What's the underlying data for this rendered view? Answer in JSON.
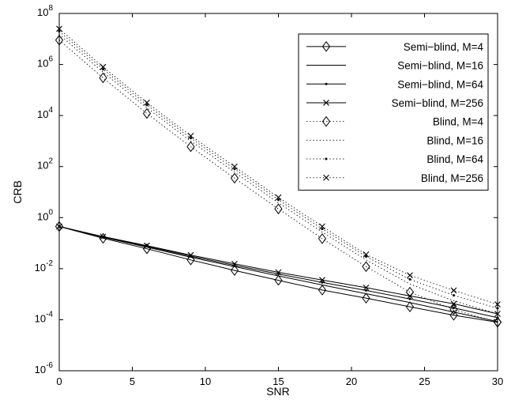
{
  "chart_data": {
    "type": "line",
    "title": "",
    "xlabel": "SNR",
    "ylabel": "CRB",
    "xlim": [
      0,
      30
    ],
    "ylim_log10": [
      -6,
      8
    ],
    "y_scale": "log",
    "x_ticks": [
      0,
      5,
      10,
      15,
      20,
      25,
      30
    ],
    "y_tick_exponents": [
      -6,
      -4,
      -2,
      0,
      2,
      4,
      6,
      8
    ],
    "x": [
      0,
      3,
      6,
      9,
      12,
      15,
      18,
      21,
      24,
      27,
      30
    ],
    "grid": false,
    "legend_position": "top-right",
    "series": [
      {
        "name": "Semi−blind, M=4",
        "line": "solid",
        "marker": "diamond",
        "values": [
          0.45,
          0.155,
          0.06,
          0.022,
          0.0085,
          0.0035,
          0.00145,
          0.0007,
          0.00032,
          0.00015,
          8e-05
        ]
      },
      {
        "name": "Semi−blind, M=16",
        "line": "solid",
        "marker": "none",
        "values": [
          0.45,
          0.17,
          0.07,
          0.028,
          0.012,
          0.0052,
          0.0023,
          0.00105,
          0.00047,
          0.0002,
          8.5e-05
        ]
      },
      {
        "name": "Semi−blind, M=64",
        "line": "solid",
        "marker": "dot",
        "values": [
          0.45,
          0.175,
          0.075,
          0.031,
          0.0135,
          0.0062,
          0.0029,
          0.0014,
          0.00065,
          0.00029,
          0.00012
        ]
      },
      {
        "name": "Semi−blind, M=256",
        "line": "solid",
        "marker": "x",
        "values": [
          0.45,
          0.18,
          0.08,
          0.034,
          0.0155,
          0.0072,
          0.0036,
          0.0018,
          0.00085,
          0.00042,
          0.00017
        ]
      },
      {
        "name": "Blind, M=4",
        "line": "dotted",
        "marker": "diamond",
        "values": [
          9000000,
          300000,
          12000,
          600,
          35,
          2.2,
          0.15,
          0.012,
          0.0012,
          0.00025,
          8e-05
        ]
      },
      {
        "name": "Blind, M=16",
        "line": "dotted",
        "marker": "none",
        "values": [
          15000000,
          500000,
          20000,
          1000,
          60,
          3.8,
          0.27,
          0.022,
          0.0025,
          0.00055,
          0.00017
        ]
      },
      {
        "name": "Blind, M=64",
        "line": "dotted",
        "marker": "dot",
        "values": [
          20000000,
          650000,
          26000,
          1300,
          80,
          5,
          0.36,
          0.03,
          0.0038,
          0.0009,
          0.00028
        ]
      },
      {
        "name": "Blind, M=256",
        "line": "dotted",
        "marker": "x",
        "values": [
          25000000,
          800000,
          32000,
          1600,
          100,
          6.2,
          0.45,
          0.036,
          0.0055,
          0.0014,
          0.0004
        ]
      }
    ]
  }
}
